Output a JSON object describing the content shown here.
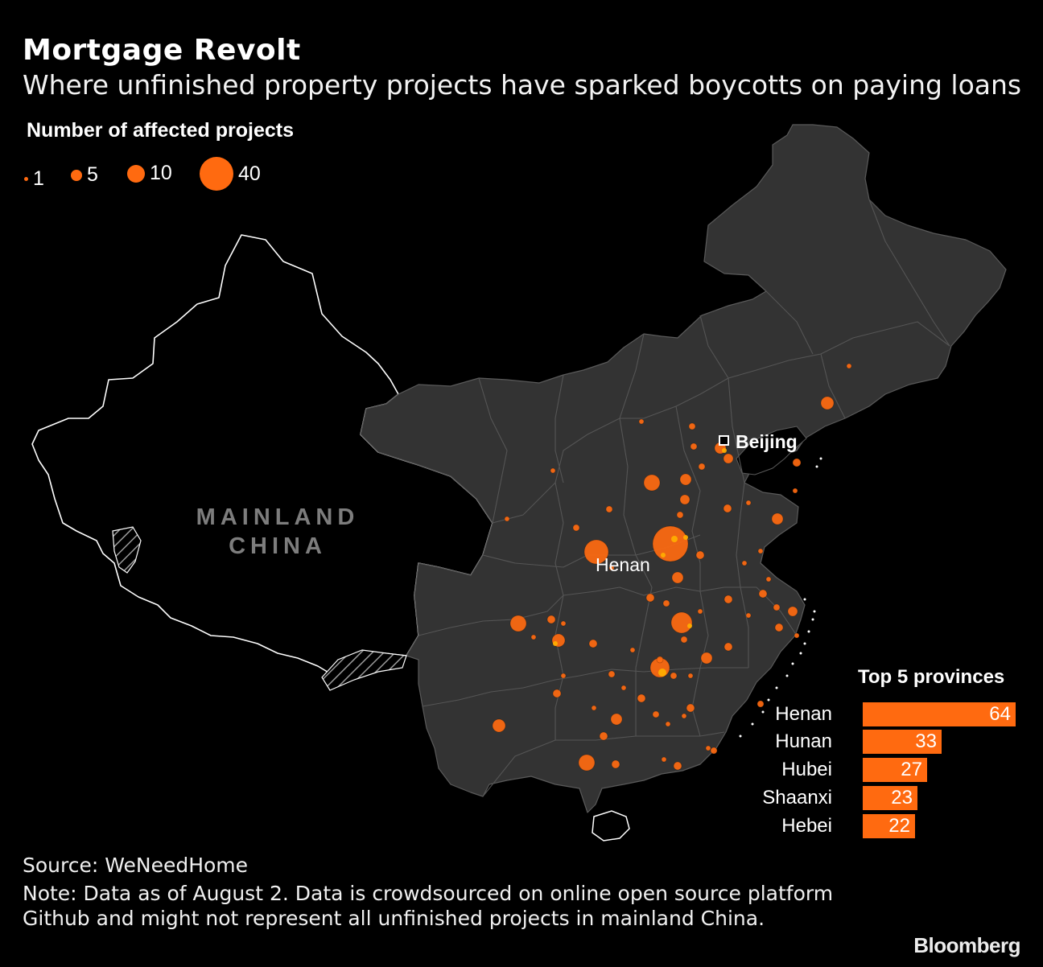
{
  "title": "Mortgage Revolt",
  "subtitle": "Where unfinished property projects have sparked boycotts on paying loans",
  "legend": {
    "title": "Number of affected projects",
    "items": [
      {
        "label": "1",
        "value": 1
      },
      {
        "label": "5",
        "value": 5
      },
      {
        "label": "10",
        "value": 10
      },
      {
        "label": "40",
        "value": 40
      }
    ]
  },
  "map": {
    "country_label_line1": "MAINLAND",
    "country_label_line2": "CHINA",
    "capital_label": "Beijing",
    "callout_label": "Henan",
    "colors": {
      "land": "#333333",
      "border": "#5a5a5a",
      "bubble": "#ff6a10",
      "bubble_highlight": "#ffb000",
      "background": "#000000"
    }
  },
  "top5": {
    "title": "Top 5 provinces",
    "rows": [
      {
        "province": "Henan",
        "value": 64
      },
      {
        "province": "Hunan",
        "value": 33
      },
      {
        "province": "Hubei",
        "value": 27
      },
      {
        "province": "Shaanxi",
        "value": 23
      },
      {
        "province": "Hebei",
        "value": 22
      }
    ]
  },
  "source": "Source: WeNeedHome",
  "note": "Note: Data as of August 2. Data is crowdsourced on online open source platform Github and might not represent all unfinished projects in mainland China.",
  "brand": "Bloomberg"
}
